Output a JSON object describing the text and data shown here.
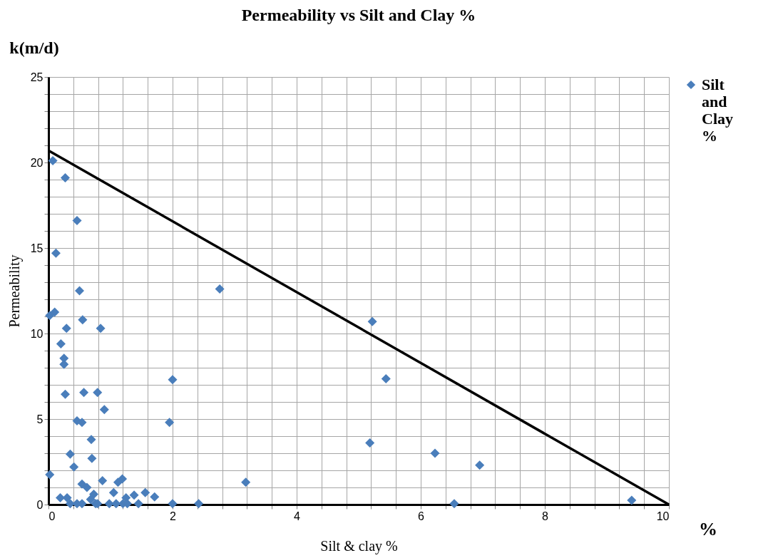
{
  "chart_data": {
    "type": "scatter",
    "title": "Permeability vs Silt and Clay %",
    "xlabel": "Silt & clay %",
    "ylabel": "Permeability",
    "annotations": [
      "k(m/d)",
      "%"
    ],
    "xlim": [
      0,
      10
    ],
    "ylim": [
      0,
      25
    ],
    "xticks": [
      0,
      {
        "value": 0.4,
        "label": null
      },
      {
        "value": 0.8,
        "label": null
      },
      {
        "value": 1.2,
        "label": null
      },
      {
        "value": 1.6,
        "label": null
      },
      2,
      {
        "value": 2.4,
        "label": null
      },
      {
        "value": 2.8,
        "label": null
      },
      {
        "value": 3.2,
        "label": null
      },
      {
        "value": 3.6,
        "label": null
      },
      4,
      {
        "value": 4.4,
        "label": null
      },
      {
        "value": 4.8,
        "label": null
      },
      {
        "value": 5.2,
        "label": null
      },
      {
        "value": 5.6,
        "label": null
      },
      6,
      {
        "value": 6.4,
        "label": null
      },
      {
        "value": 6.8,
        "label": null
      },
      {
        "value": 7.2,
        "label": null
      },
      {
        "value": 7.6,
        "label": null
      },
      8,
      {
        "value": 8.4,
        "label": null
      },
      {
        "value": 8.8,
        "label": null
      },
      {
        "value": 9.2,
        "label": null
      },
      {
        "value": 9.6,
        "label": null
      },
      10
    ],
    "yticks": [
      0,
      {
        "value": 1,
        "label": null
      },
      {
        "value": 2,
        "label": null
      },
      {
        "value": 3,
        "label": null
      },
      {
        "value": 4,
        "label": null
      },
      5,
      {
        "value": 6,
        "label": null
      },
      {
        "value": 7,
        "label": null
      },
      {
        "value": 8,
        "label": null
      },
      {
        "value": 9,
        "label": null
      },
      10,
      {
        "value": 11,
        "label": null
      },
      {
        "value": 12,
        "label": null
      },
      {
        "value": 13,
        "label": null
      },
      {
        "value": 14,
        "label": null
      },
      15,
      {
        "value": 16,
        "label": null
      },
      {
        "value": 17,
        "label": null
      },
      {
        "value": 18,
        "label": null
      },
      {
        "value": 19,
        "label": null
      },
      20,
      {
        "value": 21,
        "label": null
      },
      {
        "value": 22,
        "label": null
      },
      {
        "value": 23,
        "label": null
      },
      {
        "value": 24,
        "label": null
      },
      25
    ],
    "grid": true,
    "legend": "right",
    "marker": "diamond",
    "series": [
      {
        "name": "Silt and Clay %",
        "color": "#4a7ebb",
        "x": [
          0.07,
          0.27,
          0.46,
          0.12,
          0.5,
          0.02,
          0.1,
          0.29,
          0.55,
          0.84,
          0.2,
          0.25,
          0.25,
          0.27,
          0.57,
          0.79,
          0.9,
          0.46,
          0.54,
          0.69,
          0.35,
          0.7,
          0.41,
          0.02,
          0.87,
          0.54,
          0.62,
          0.73,
          1.12,
          1.19,
          1.05,
          1.56,
          1.71,
          0.19,
          0.3,
          1.25,
          1.38,
          0.68,
          0.35,
          0.46,
          0.54,
          0.76,
          0.79,
          0.98,
          1.09,
          1.2,
          1.27,
          1.45,
          2.0,
          2.0,
          1.95,
          2.76,
          5.22,
          5.44,
          5.18,
          6.23,
          6.95,
          3.18,
          2.42,
          6.54,
          9.4
        ],
        "values": [
          20.1,
          19.1,
          16.6,
          14.7,
          12.5,
          11.05,
          11.25,
          10.3,
          10.8,
          10.3,
          9.4,
          8.55,
          8.2,
          6.45,
          6.55,
          6.55,
          5.55,
          4.9,
          4.8,
          3.8,
          2.95,
          2.7,
          2.2,
          1.75,
          1.4,
          1.2,
          1.0,
          0.6,
          1.3,
          1.5,
          0.7,
          0.7,
          0.45,
          0.4,
          0.4,
          0.4,
          0.55,
          0.3,
          0.05,
          0.05,
          0.05,
          0.05,
          0.05,
          0.05,
          0.05,
          0.05,
          0.05,
          0.05,
          0.05,
          7.3,
          4.8,
          12.6,
          10.7,
          7.35,
          3.6,
          3.0,
          2.3,
          1.3,
          0.05,
          0.05,
          0.25
        ]
      },
      {
        "type": "line",
        "marker": "none",
        "color": "#000000",
        "x": [
          0,
          10
        ],
        "values": [
          20.7,
          0
        ]
      }
    ]
  }
}
